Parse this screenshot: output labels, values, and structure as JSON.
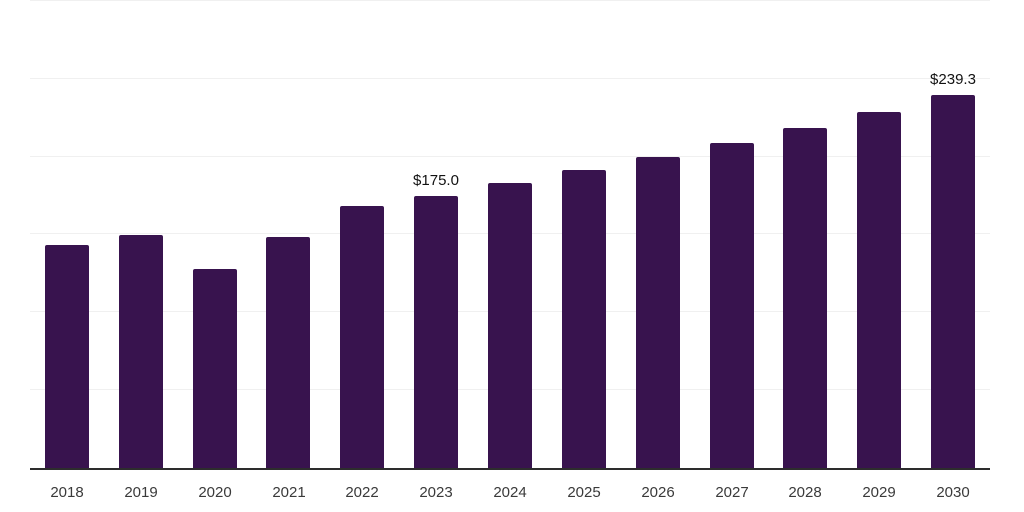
{
  "chart_data": {
    "type": "bar",
    "title": "",
    "xlabel": "",
    "ylabel": "",
    "categories": [
      "2018",
      "2019",
      "2020",
      "2021",
      "2022",
      "2023",
      "2024",
      "2025",
      "2026",
      "2027",
      "2028",
      "2029",
      "2030"
    ],
    "values": [
      143.0,
      149.5,
      128.0,
      148.5,
      168.0,
      175.0,
      183.0,
      191.5,
      200.0,
      209.0,
      218.5,
      228.5,
      239.3
    ],
    "bar_labels": [
      "",
      "",
      "",
      "",
      "",
      "$175.0",
      "",
      "",
      "",
      "",
      "",
      "",
      "$239.3"
    ],
    "ylim": [
      0,
      300
    ],
    "grid_step": 50,
    "grid": true,
    "y_tick_labels_visible": false,
    "legend": false
  },
  "style": {
    "bar_color": "#38134E",
    "gridline_color": "#f0f0f0",
    "axis_line_color": "#2d2d2d",
    "tick_label_color": "#3a3a3a",
    "value_label_color": "#121212",
    "background_color": "#ffffff"
  },
  "geometry_note": "13 vertical bars, no y-axis tick labels, horizontal gridlines every 50 units from 0 to 300"
}
